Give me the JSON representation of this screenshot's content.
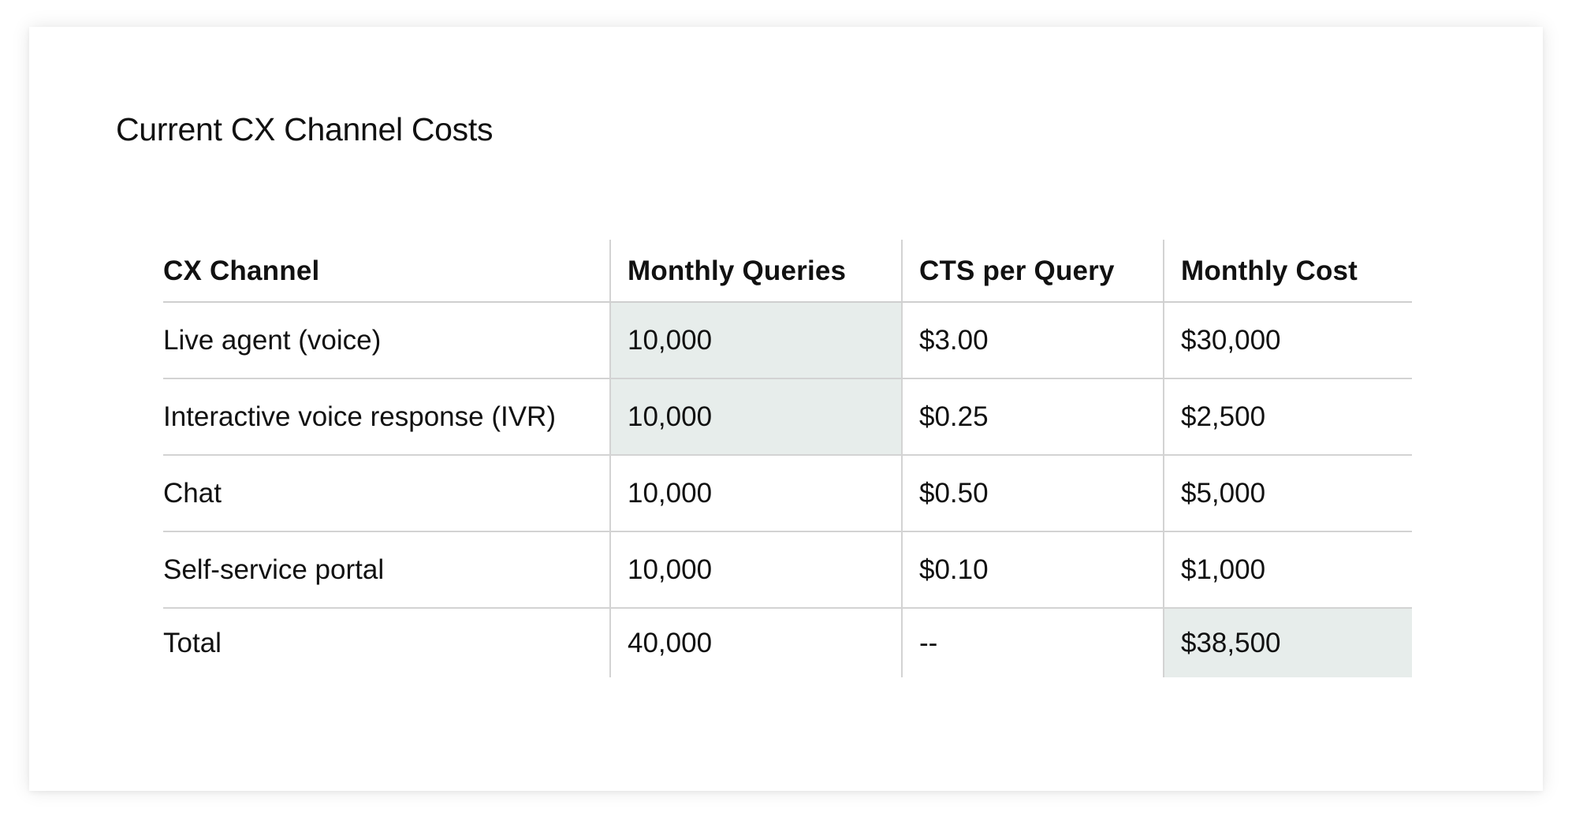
{
  "title": "Current CX Channel Costs",
  "highlight_color": "#e7edeb",
  "table": {
    "headers": [
      "CX Channel",
      "Monthly Queries",
      "CTS per Query",
      "Monthly Cost"
    ],
    "rows": [
      [
        "Live agent (voice)",
        "10,000",
        "$3.00",
        "$30,000"
      ],
      [
        "Interactive voice response (IVR)",
        "10,000",
        "$0.25",
        "$2,500"
      ],
      [
        "Chat",
        "10,000",
        "$0.50",
        "$5,000"
      ],
      [
        "Self-service portal",
        "10,000",
        "$0.10",
        "$1,000"
      ],
      [
        "Total",
        "40,000",
        "--",
        "$38,500"
      ]
    ]
  }
}
